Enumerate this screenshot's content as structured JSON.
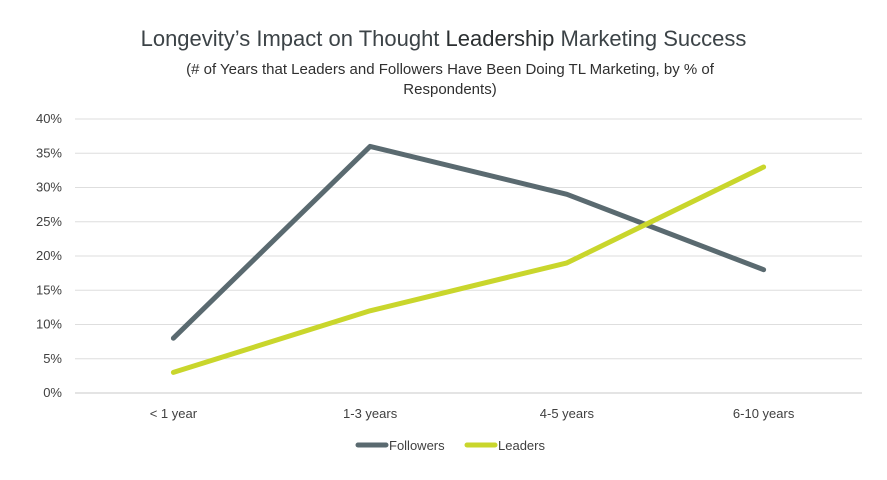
{
  "chart_data": {
    "type": "line",
    "title_parts": [
      "Longevity’s Impact on Thought ",
      "Leadership",
      " Marketing Success"
    ],
    "subtitle": "(# of Years that Leaders and Followers Have Been Doing TL Marketing, by % of Respondents)",
    "categories": [
      "< 1 year",
      "1-3 years",
      "4-5 years",
      "6-10 years"
    ],
    "y_ticks": [
      "0%",
      "5%",
      "10%",
      "15%",
      "20%",
      "25%",
      "30%",
      "35%",
      "40%"
    ],
    "ylim": [
      0,
      40
    ],
    "grid": true,
    "legend_position": "bottom",
    "series": [
      {
        "name": "Followers",
        "color": "#5a6a70",
        "values": [
          8,
          36,
          29,
          18
        ]
      },
      {
        "name": "Leaders",
        "color": "#c9d62c",
        "values": [
          3,
          12,
          19,
          33
        ]
      }
    ]
  }
}
